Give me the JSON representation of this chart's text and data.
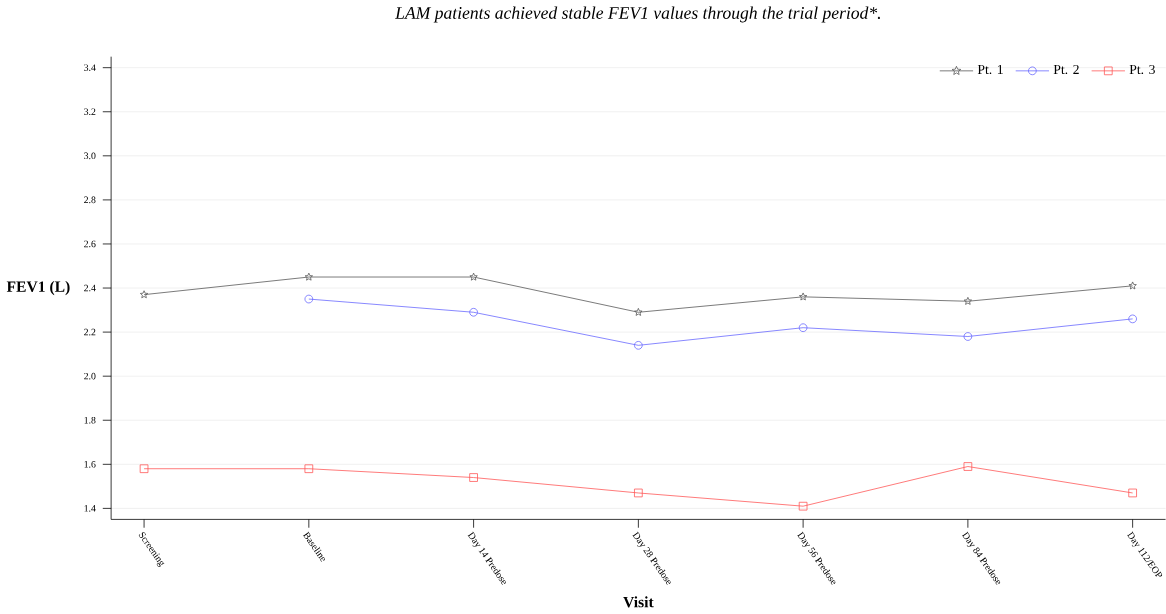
{
  "chart_data": {
    "type": "line",
    "title": "LAM patients achieved stable FEV1 values through the trial period*.",
    "xlabel": "Visit",
    "ylabel": "FEV1 (L)",
    "categories": [
      "Screening",
      "Baseline",
      "Day 14 Predose",
      "Day 28 Predose",
      "Day 56 Predose",
      "Day 84 Predose",
      "Day 112/EOP"
    ],
    "ylim": [
      1.35,
      3.45
    ],
    "yticks": [
      1.4,
      1.6,
      1.8,
      {
        "value": 2.0,
        "label": "2.0"
      },
      2.2,
      2.4,
      2.6,
      2.8,
      {
        "value": 3.0,
        "label": "3.0"
      },
      3.2,
      3.4
    ],
    "grid": "y",
    "legend": "top right",
    "series": [
      {
        "name": "Pt. 1",
        "color": "#555555",
        "marker": "star",
        "values": [
          2.37,
          2.45,
          2.45,
          2.29,
          2.36,
          2.34,
          2.41
        ]
      },
      {
        "name": "Pt. 2",
        "color": "#6666ff",
        "marker": "circle",
        "values": [
          null,
          2.35,
          2.29,
          2.14,
          2.22,
          2.18,
          2.26
        ]
      },
      {
        "name": "Pt. 3",
        "color": "#ff5555",
        "marker": "square",
        "values": [
          1.58,
          1.58,
          1.54,
          1.47,
          1.41,
          1.59,
          1.47
        ]
      }
    ]
  }
}
